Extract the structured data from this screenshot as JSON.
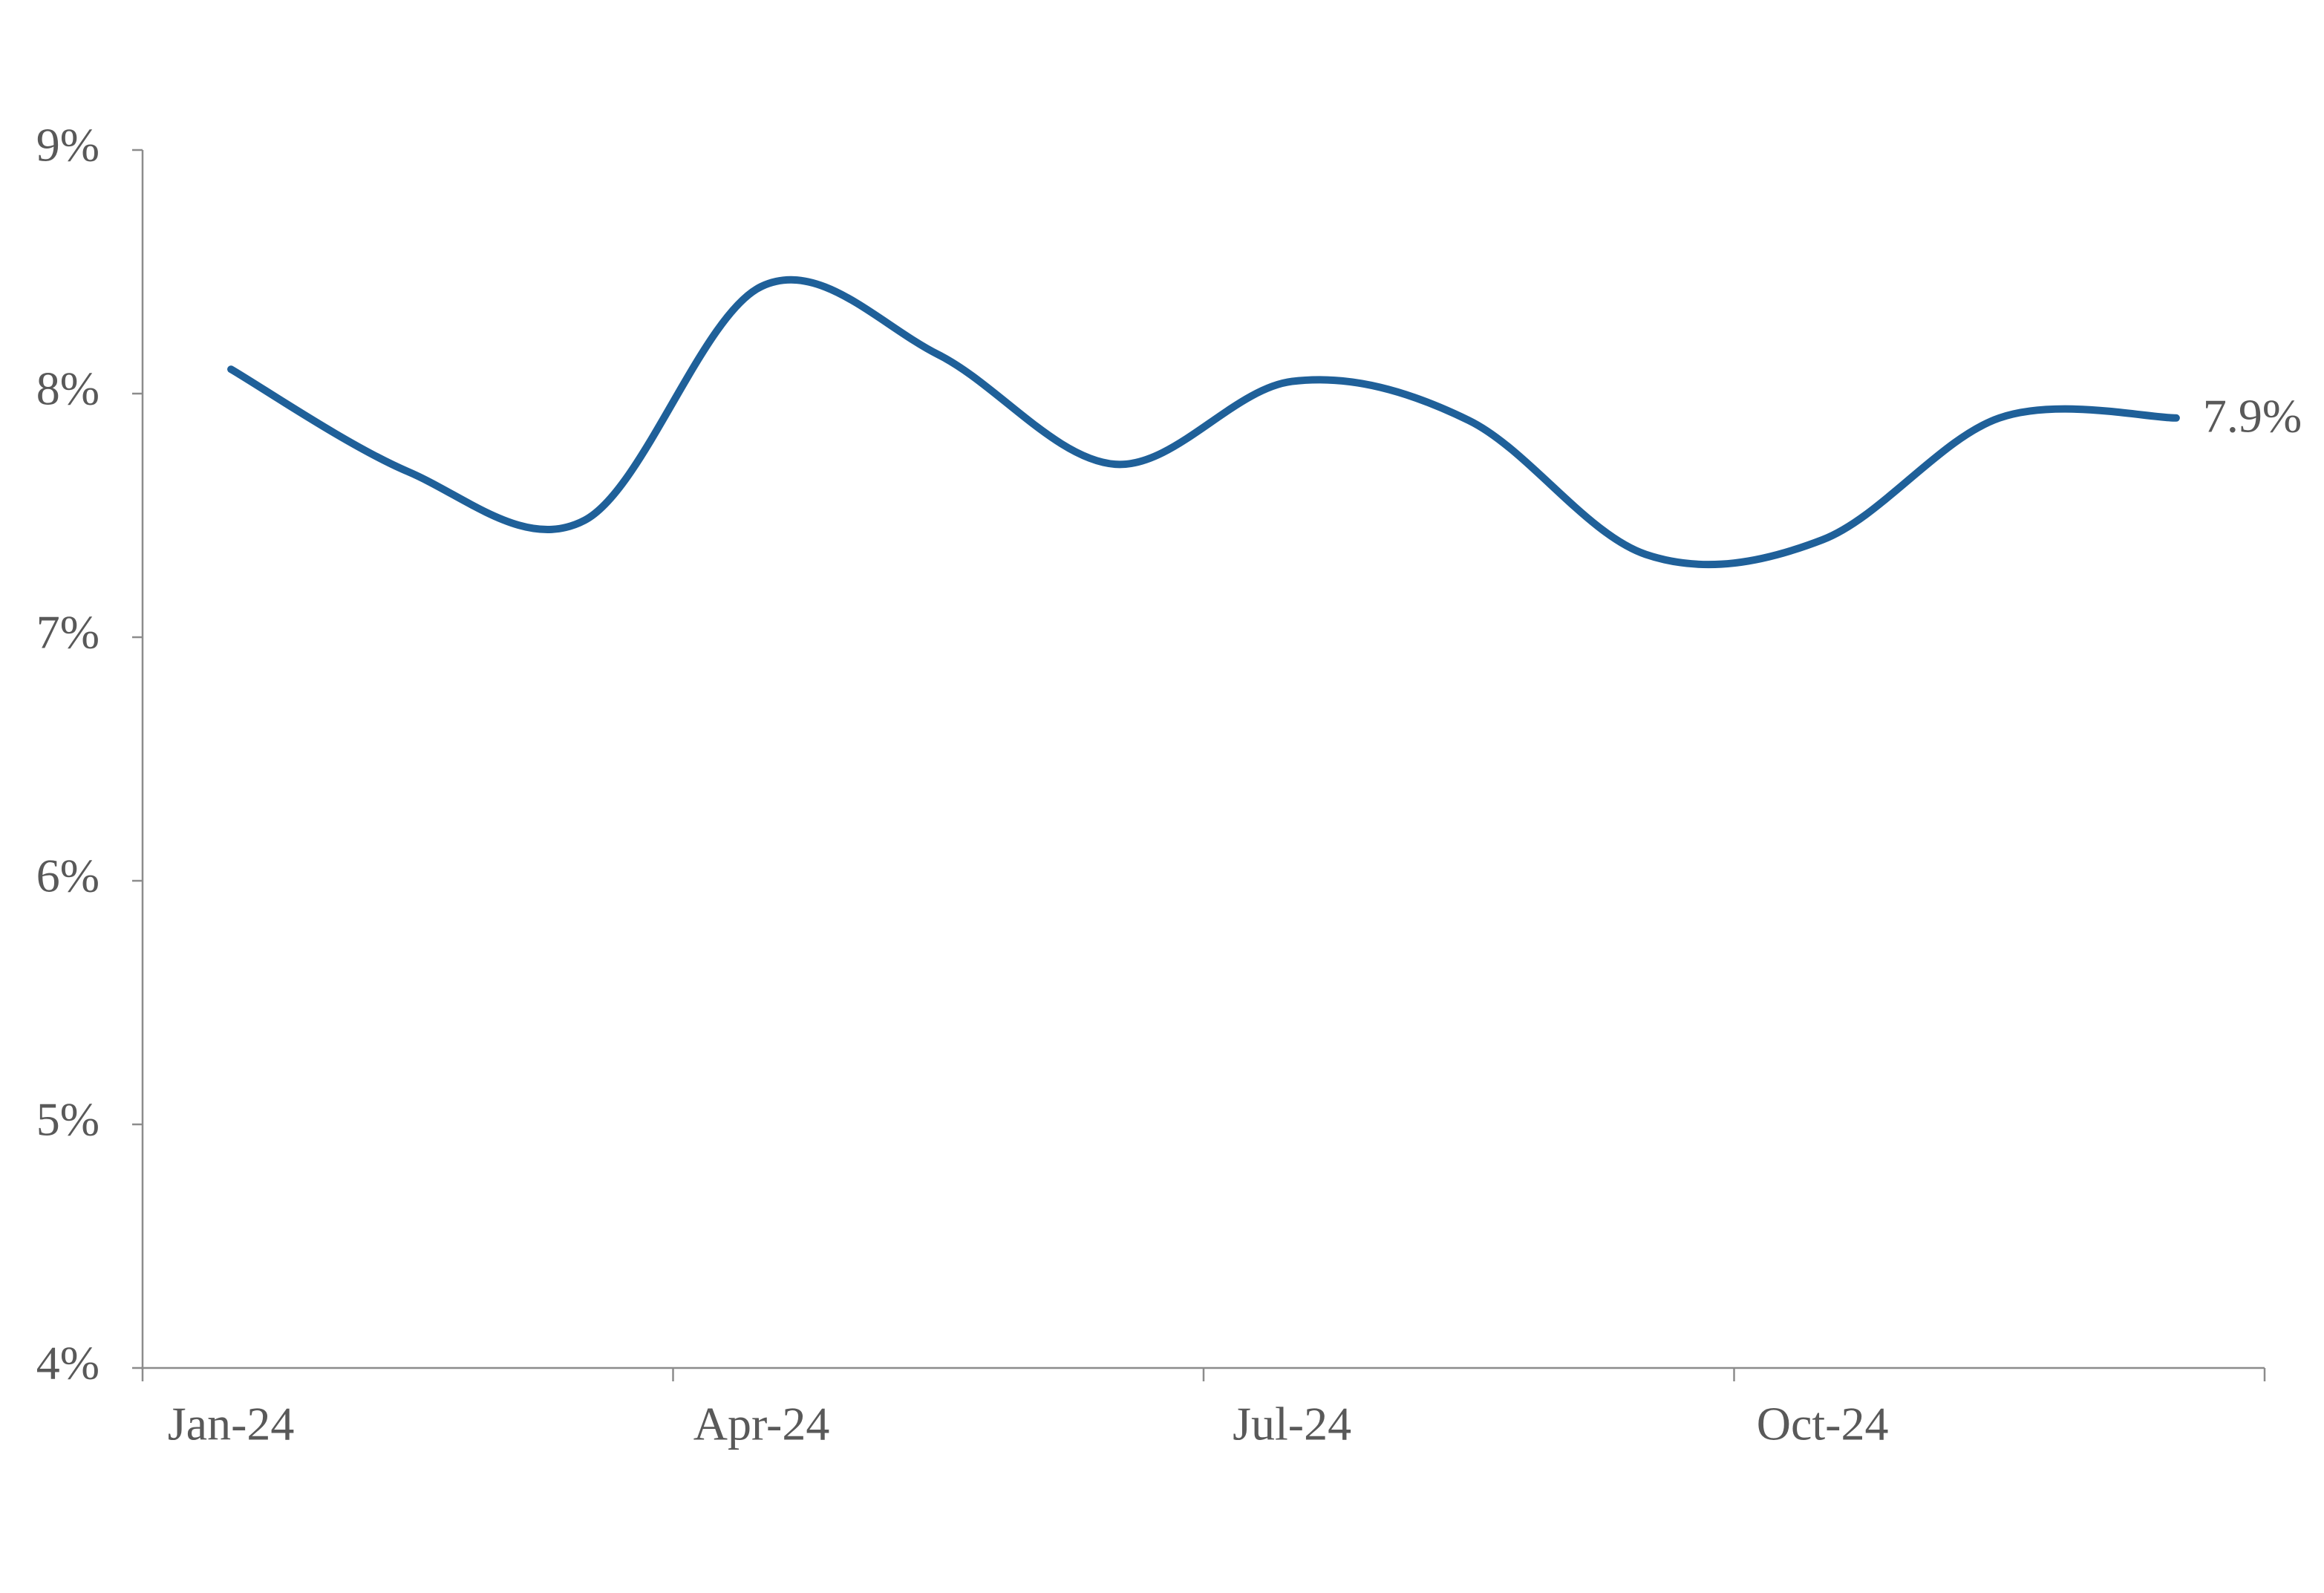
{
  "chart_data": {
    "type": "line",
    "categories": [
      "Jan-24",
      null,
      null,
      "Apr-24",
      null,
      null,
      "Jul-24",
      null,
      null,
      "Oct-24",
      null,
      null
    ],
    "series": [
      {
        "color": "#1f6099",
        "values": [
          8.1,
          7.68,
          7.48,
          8.44,
          8.16,
          7.71,
          8.05,
          7.89,
          7.34,
          7.4,
          7.9,
          7.9
        ],
        "value_labels": [
          null,
          null,
          null,
          null,
          null,
          null,
          null,
          null,
          null,
          null,
          null,
          "7.9%"
        ]
      }
    ],
    "ylim": [
      4,
      9
    ],
    "yticks": [
      {
        "value": 4,
        "label": "4%"
      },
      {
        "value": 5,
        "label": "5%"
      },
      {
        "value": 6,
        "label": "6%"
      },
      {
        "value": 7,
        "label": "7%"
      },
      {
        "value": 8,
        "label": "8%"
      },
      {
        "value": 9,
        "label": "9%"
      }
    ],
    "grid": false
  }
}
